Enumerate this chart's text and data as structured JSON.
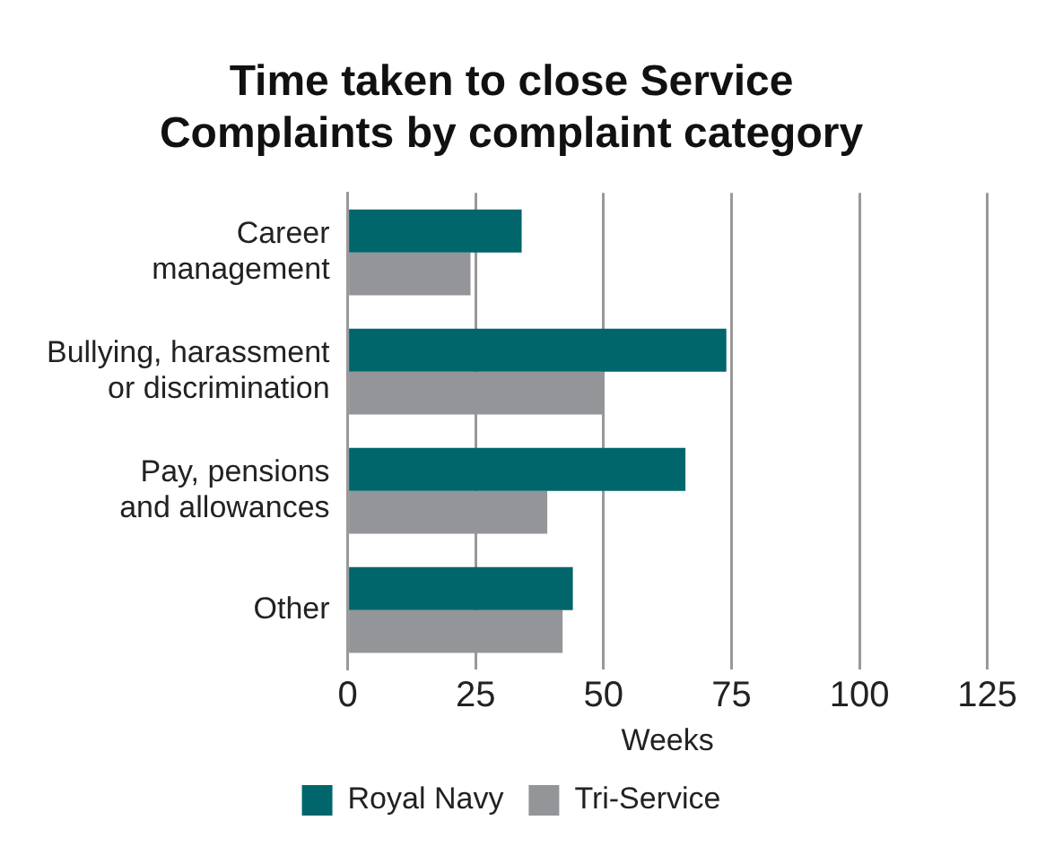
{
  "chart_data": {
    "type": "bar",
    "orientation": "horizontal",
    "title": "Time taken to close Service Complaints by complaint category",
    "xlabel": "Weeks",
    "categories": [
      "Career management",
      "Bullying, harassment or discrimination",
      "Pay, pensions and allowances",
      "Other"
    ],
    "series": [
      {
        "name": "Royal Navy",
        "color": "#00666b",
        "values": [
          34,
          74,
          66,
          44
        ]
      },
      {
        "name": "Tri-Service",
        "color": "#939598",
        "values": [
          24,
          50,
          39,
          42
        ]
      }
    ],
    "xlim": [
      0,
      125
    ],
    "xticks": [
      0,
      25,
      50,
      75,
      100,
      125
    ],
    "grid": "x",
    "legend": "bottom"
  }
}
